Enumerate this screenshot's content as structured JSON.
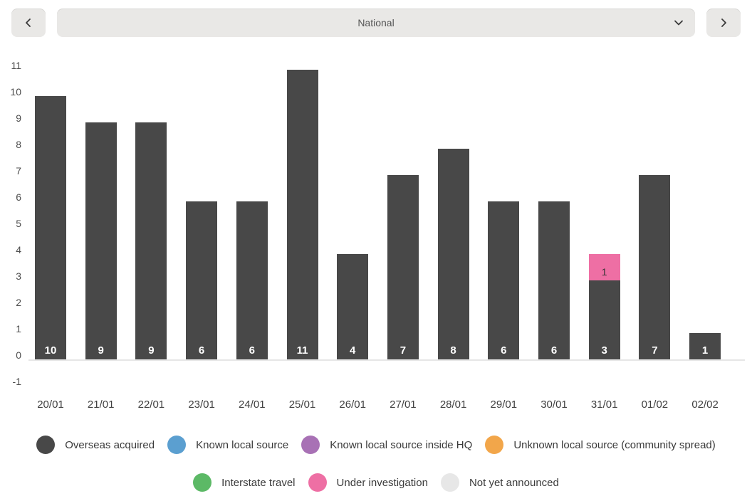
{
  "toolbar": {
    "region_selector": {
      "value": "National"
    },
    "icons": {
      "prev": "chevron-left",
      "next": "chevron-right",
      "dropdown": "chevron-down"
    }
  },
  "chart_data": {
    "type": "bar",
    "stacked": true,
    "title": "",
    "xlabel": "",
    "ylabel": "",
    "ylim": [
      -1,
      11
    ],
    "yticks": [
      11,
      10,
      9,
      8,
      7,
      6,
      5,
      4,
      3,
      2,
      1,
      0,
      -1
    ],
    "grid": false,
    "legend_position": "bottom",
    "categories": [
      "20/01",
      "21/01",
      "22/01",
      "23/01",
      "24/01",
      "25/01",
      "26/01",
      "27/01",
      "28/01",
      "29/01",
      "30/01",
      "31/01",
      "01/02",
      "02/02"
    ],
    "series": [
      {
        "name": "Overseas acquired",
        "color": "#484848",
        "label_color": "#ffffff",
        "values": [
          10,
          9,
          9,
          6,
          6,
          11,
          4,
          7,
          8,
          6,
          6,
          3,
          7,
          1
        ]
      },
      {
        "name": "Known local source",
        "color": "#5b9fd0",
        "label_color": "#333333",
        "values": [
          0,
          0,
          0,
          0,
          0,
          0,
          0,
          0,
          0,
          0,
          0,
          0,
          0,
          0
        ]
      },
      {
        "name": "Known local source inside HQ",
        "color": "#a871b5",
        "label_color": "#333333",
        "values": [
          0,
          0,
          0,
          0,
          0,
          0,
          0,
          0,
          0,
          0,
          0,
          0,
          0,
          0
        ]
      },
      {
        "name": "Unknown local source (community spread)",
        "color": "#f2a64a",
        "label_color": "#333333",
        "values": [
          0,
          0,
          0,
          0,
          0,
          0,
          0,
          0,
          0,
          0,
          0,
          0,
          0,
          0
        ]
      },
      {
        "name": "Interstate travel",
        "color": "#5cb966",
        "label_color": "#333333",
        "values": [
          0,
          0,
          0,
          0,
          0,
          0,
          0,
          0,
          0,
          0,
          0,
          0,
          0,
          0
        ]
      },
      {
        "name": "Under investigation",
        "color": "#ee6fa4",
        "label_color": "#333333",
        "values": [
          0,
          0,
          0,
          0,
          0,
          0,
          0,
          0,
          0,
          0,
          0,
          1,
          0,
          0
        ]
      },
      {
        "name": "Not yet announced",
        "color": "#e7e7e7",
        "label_color": "#333333",
        "values": [
          0,
          0,
          0,
          0,
          0,
          0,
          0,
          0,
          0,
          0,
          0,
          0,
          0,
          0
        ]
      }
    ]
  }
}
